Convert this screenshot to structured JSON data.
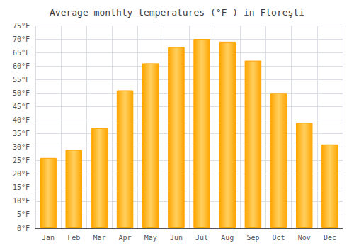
{
  "chart_data": {
    "type": "bar",
    "title": "Average monthly temperatures (°F ) in Floreşti",
    "categories": [
      "Jan",
      "Feb",
      "Mar",
      "Apr",
      "May",
      "Jun",
      "Jul",
      "Aug",
      "Sep",
      "Oct",
      "Nov",
      "Dec"
    ],
    "values": [
      26,
      29,
      37,
      51,
      61,
      67,
      70,
      69,
      62,
      50,
      39,
      31
    ],
    "color": "#FFA500",
    "ylim": [
      0,
      75
    ],
    "yticks": [
      {
        "value": 0,
        "label": "0°F"
      },
      {
        "value": 5,
        "label": "5°F"
      },
      {
        "value": 10,
        "label": "10°F"
      },
      {
        "value": 15,
        "label": "15°F"
      },
      {
        "value": 20,
        "label": "20°F"
      },
      {
        "value": 25,
        "label": "25°F"
      },
      {
        "value": 30,
        "label": "30°F"
      },
      {
        "value": 35,
        "label": "35°F"
      },
      {
        "value": 40,
        "label": "40°F"
      },
      {
        "value": 45,
        "label": "45°F"
      },
      {
        "value": 50,
        "label": "50°F"
      },
      {
        "value": 55,
        "label": "55°F"
      },
      {
        "value": 60,
        "label": "60°F"
      },
      {
        "value": 65,
        "label": "65°F"
      },
      {
        "value": 70,
        "label": "70°F"
      },
      {
        "value": 75,
        "label": "75°F"
      }
    ],
    "grid": true
  }
}
